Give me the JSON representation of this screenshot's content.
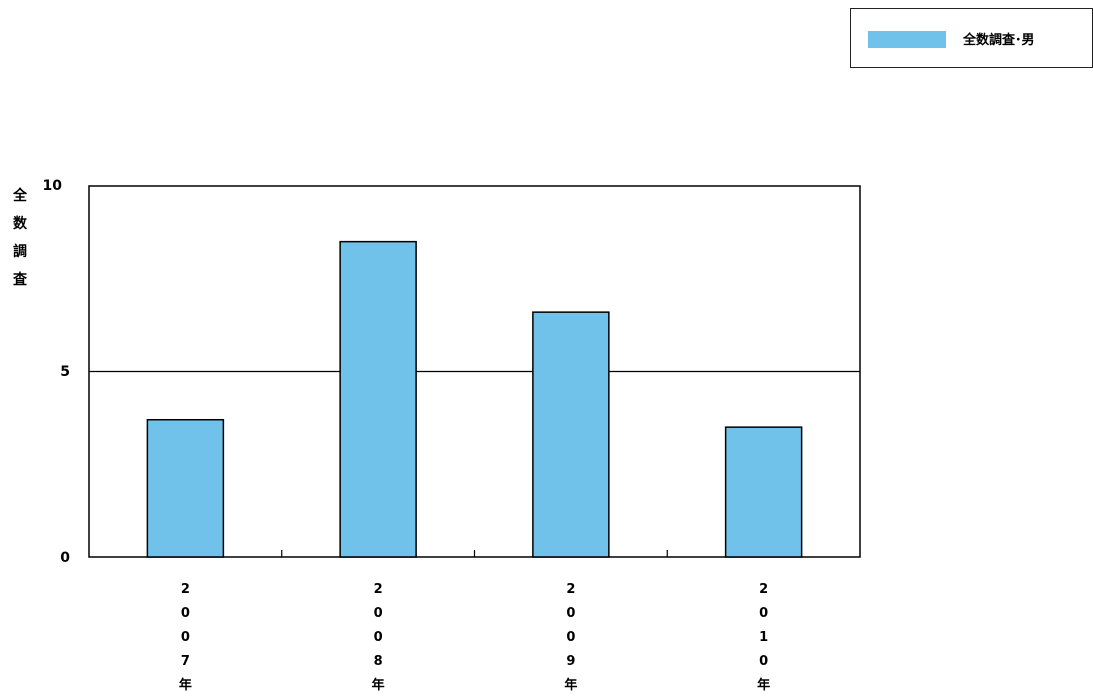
{
  "chart_data": {
    "type": "bar",
    "title": "",
    "xlabel": "",
    "ylabel": "全数調査",
    "categories": [
      "2007年",
      "2008年",
      "2009年",
      "2010年"
    ],
    "series": [
      {
        "name": "全数調査･男",
        "values": [
          3.7,
          8.5,
          6.6,
          3.5
        ],
        "color": "#71c2eb"
      }
    ],
    "ylim": [
      0,
      10
    ],
    "yticks": [
      "0",
      "5",
      "10"
    ],
    "grid": "horizontal at 5",
    "legend_position": "top-right"
  }
}
